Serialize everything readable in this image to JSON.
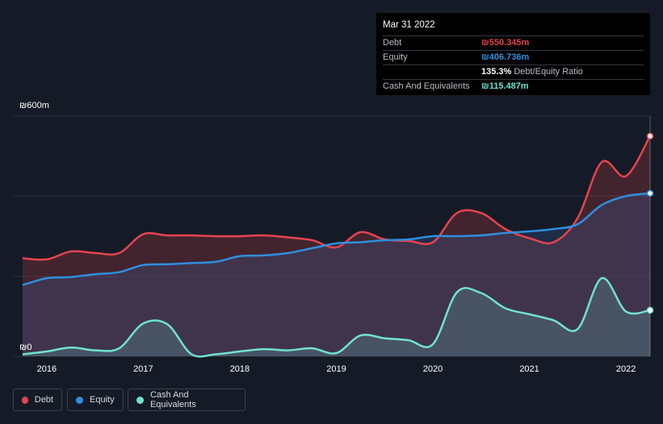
{
  "tooltip": {
    "date": "Mar 31 2022",
    "debt_label": "Debt",
    "debt_value": "₪550.345m",
    "equity_label": "Equity",
    "equity_value": "₪406.736m",
    "ratio_value": "135.3%",
    "ratio_label": "Debt/Equity Ratio",
    "cash_label": "Cash And Equivalents",
    "cash_value": "₪115.487m"
  },
  "legend": {
    "debt": "Debt",
    "equity": "Equity",
    "cash": "Cash And Equivalents"
  },
  "colors": {
    "debt": "#e5444f",
    "equity": "#2f8fe0",
    "cash": "#6fe3cf",
    "background": "#151b26"
  },
  "chart_data": {
    "type": "area",
    "ylabel_top": "₪600m",
    "ylabel_bottom": "₪0",
    "ylim": [
      0,
      600
    ],
    "xlim": [
      2015.65,
      2022.25
    ],
    "x_ticks": [
      2016,
      2017,
      2018,
      2019,
      2020,
      2021,
      2022
    ],
    "x_tick_labels": [
      "2016",
      "2017",
      "2018",
      "2019",
      "2020",
      "2021",
      "2022"
    ],
    "series": [
      {
        "name": "Debt",
        "x": [
          2015.75,
          2016.0,
          2016.25,
          2016.5,
          2016.75,
          2017.0,
          2017.25,
          2017.5,
          2017.75,
          2018.0,
          2018.25,
          2018.5,
          2018.75,
          2019.0,
          2019.25,
          2019.5,
          2019.75,
          2020.0,
          2020.25,
          2020.5,
          2020.75,
          2021.0,
          2021.25,
          2021.5,
          2021.75,
          2022.0,
          2022.25
        ],
        "values": [
          245,
          242,
          262,
          258,
          258,
          305,
          302,
          302,
          300,
          300,
          302,
          297,
          290,
          272,
          310,
          292,
          288,
          285,
          358,
          358,
          318,
          295,
          285,
          345,
          485,
          450,
          550
        ]
      },
      {
        "name": "Equity",
        "x": [
          2015.75,
          2016.0,
          2016.25,
          2016.5,
          2016.75,
          2017.0,
          2017.25,
          2017.5,
          2017.75,
          2018.0,
          2018.25,
          2018.5,
          2018.75,
          2019.0,
          2019.25,
          2019.5,
          2019.75,
          2020.0,
          2020.25,
          2020.5,
          2020.75,
          2021.0,
          2021.25,
          2021.5,
          2021.75,
          2022.0,
          2022.25
        ],
        "values": [
          178,
          195,
          198,
          205,
          210,
          228,
          230,
          233,
          236,
          250,
          252,
          258,
          270,
          282,
          285,
          290,
          292,
          300,
          300,
          302,
          308,
          312,
          318,
          330,
          378,
          400,
          407
        ]
      },
      {
        "name": "Cash And Equivalents",
        "x": [
          2015.75,
          2016.0,
          2016.25,
          2016.5,
          2016.75,
          2017.0,
          2017.25,
          2017.5,
          2017.75,
          2018.0,
          2018.25,
          2018.5,
          2018.75,
          2019.0,
          2019.25,
          2019.5,
          2019.75,
          2020.0,
          2020.25,
          2020.5,
          2020.75,
          2021.0,
          2021.25,
          2021.5,
          2021.75,
          2022.0,
          2022.25
        ],
        "values": [
          5,
          12,
          22,
          15,
          20,
          82,
          80,
          5,
          5,
          12,
          18,
          15,
          20,
          8,
          52,
          45,
          40,
          30,
          160,
          158,
          120,
          105,
          90,
          68,
          195,
          112,
          115
        ]
      }
    ]
  }
}
